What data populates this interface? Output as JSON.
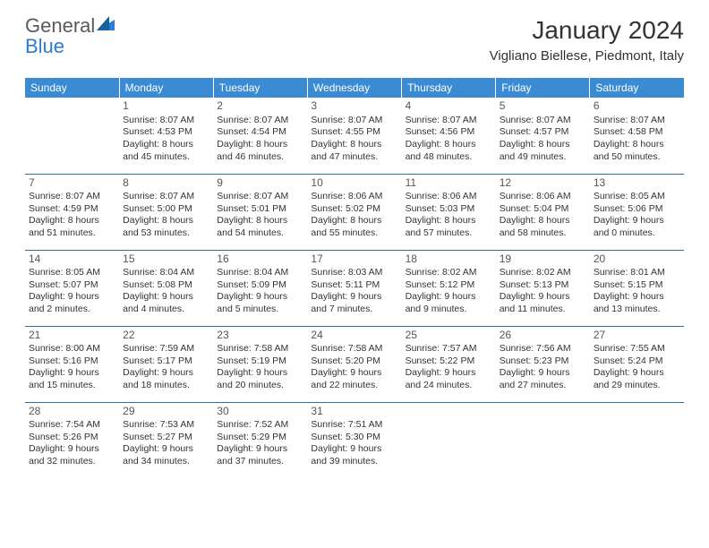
{
  "brand": {
    "part1": "General",
    "part2": "Blue"
  },
  "title": {
    "month": "January 2024",
    "location": "Vigliano Biellese, Piedmont, Italy"
  },
  "colors": {
    "header_bg": "#3b8bd4",
    "header_text": "#ffffff",
    "row_border": "#2d6fa8",
    "text": "#333333",
    "logo_gray": "#5a5a5a",
    "logo_blue": "#2b7cd3"
  },
  "weekdays": [
    "Sunday",
    "Monday",
    "Tuesday",
    "Wednesday",
    "Thursday",
    "Friday",
    "Saturday"
  ],
  "weeks": [
    [
      null,
      {
        "n": "1",
        "sr": "Sunrise: 8:07 AM",
        "ss": "Sunset: 4:53 PM",
        "d1": "Daylight: 8 hours",
        "d2": "and 45 minutes."
      },
      {
        "n": "2",
        "sr": "Sunrise: 8:07 AM",
        "ss": "Sunset: 4:54 PM",
        "d1": "Daylight: 8 hours",
        "d2": "and 46 minutes."
      },
      {
        "n": "3",
        "sr": "Sunrise: 8:07 AM",
        "ss": "Sunset: 4:55 PM",
        "d1": "Daylight: 8 hours",
        "d2": "and 47 minutes."
      },
      {
        "n": "4",
        "sr": "Sunrise: 8:07 AM",
        "ss": "Sunset: 4:56 PM",
        "d1": "Daylight: 8 hours",
        "d2": "and 48 minutes."
      },
      {
        "n": "5",
        "sr": "Sunrise: 8:07 AM",
        "ss": "Sunset: 4:57 PM",
        "d1": "Daylight: 8 hours",
        "d2": "and 49 minutes."
      },
      {
        "n": "6",
        "sr": "Sunrise: 8:07 AM",
        "ss": "Sunset: 4:58 PM",
        "d1": "Daylight: 8 hours",
        "d2": "and 50 minutes."
      }
    ],
    [
      {
        "n": "7",
        "sr": "Sunrise: 8:07 AM",
        "ss": "Sunset: 4:59 PM",
        "d1": "Daylight: 8 hours",
        "d2": "and 51 minutes."
      },
      {
        "n": "8",
        "sr": "Sunrise: 8:07 AM",
        "ss": "Sunset: 5:00 PM",
        "d1": "Daylight: 8 hours",
        "d2": "and 53 minutes."
      },
      {
        "n": "9",
        "sr": "Sunrise: 8:07 AM",
        "ss": "Sunset: 5:01 PM",
        "d1": "Daylight: 8 hours",
        "d2": "and 54 minutes."
      },
      {
        "n": "10",
        "sr": "Sunrise: 8:06 AM",
        "ss": "Sunset: 5:02 PM",
        "d1": "Daylight: 8 hours",
        "d2": "and 55 minutes."
      },
      {
        "n": "11",
        "sr": "Sunrise: 8:06 AM",
        "ss": "Sunset: 5:03 PM",
        "d1": "Daylight: 8 hours",
        "d2": "and 57 minutes."
      },
      {
        "n": "12",
        "sr": "Sunrise: 8:06 AM",
        "ss": "Sunset: 5:04 PM",
        "d1": "Daylight: 8 hours",
        "d2": "and 58 minutes."
      },
      {
        "n": "13",
        "sr": "Sunrise: 8:05 AM",
        "ss": "Sunset: 5:06 PM",
        "d1": "Daylight: 9 hours",
        "d2": "and 0 minutes."
      }
    ],
    [
      {
        "n": "14",
        "sr": "Sunrise: 8:05 AM",
        "ss": "Sunset: 5:07 PM",
        "d1": "Daylight: 9 hours",
        "d2": "and 2 minutes."
      },
      {
        "n": "15",
        "sr": "Sunrise: 8:04 AM",
        "ss": "Sunset: 5:08 PM",
        "d1": "Daylight: 9 hours",
        "d2": "and 4 minutes."
      },
      {
        "n": "16",
        "sr": "Sunrise: 8:04 AM",
        "ss": "Sunset: 5:09 PM",
        "d1": "Daylight: 9 hours",
        "d2": "and 5 minutes."
      },
      {
        "n": "17",
        "sr": "Sunrise: 8:03 AM",
        "ss": "Sunset: 5:11 PM",
        "d1": "Daylight: 9 hours",
        "d2": "and 7 minutes."
      },
      {
        "n": "18",
        "sr": "Sunrise: 8:02 AM",
        "ss": "Sunset: 5:12 PM",
        "d1": "Daylight: 9 hours",
        "d2": "and 9 minutes."
      },
      {
        "n": "19",
        "sr": "Sunrise: 8:02 AM",
        "ss": "Sunset: 5:13 PM",
        "d1": "Daylight: 9 hours",
        "d2": "and 11 minutes."
      },
      {
        "n": "20",
        "sr": "Sunrise: 8:01 AM",
        "ss": "Sunset: 5:15 PM",
        "d1": "Daylight: 9 hours",
        "d2": "and 13 minutes."
      }
    ],
    [
      {
        "n": "21",
        "sr": "Sunrise: 8:00 AM",
        "ss": "Sunset: 5:16 PM",
        "d1": "Daylight: 9 hours",
        "d2": "and 15 minutes."
      },
      {
        "n": "22",
        "sr": "Sunrise: 7:59 AM",
        "ss": "Sunset: 5:17 PM",
        "d1": "Daylight: 9 hours",
        "d2": "and 18 minutes."
      },
      {
        "n": "23",
        "sr": "Sunrise: 7:58 AM",
        "ss": "Sunset: 5:19 PM",
        "d1": "Daylight: 9 hours",
        "d2": "and 20 minutes."
      },
      {
        "n": "24",
        "sr": "Sunrise: 7:58 AM",
        "ss": "Sunset: 5:20 PM",
        "d1": "Daylight: 9 hours",
        "d2": "and 22 minutes."
      },
      {
        "n": "25",
        "sr": "Sunrise: 7:57 AM",
        "ss": "Sunset: 5:22 PM",
        "d1": "Daylight: 9 hours",
        "d2": "and 24 minutes."
      },
      {
        "n": "26",
        "sr": "Sunrise: 7:56 AM",
        "ss": "Sunset: 5:23 PM",
        "d1": "Daylight: 9 hours",
        "d2": "and 27 minutes."
      },
      {
        "n": "27",
        "sr": "Sunrise: 7:55 AM",
        "ss": "Sunset: 5:24 PM",
        "d1": "Daylight: 9 hours",
        "d2": "and 29 minutes."
      }
    ],
    [
      {
        "n": "28",
        "sr": "Sunrise: 7:54 AM",
        "ss": "Sunset: 5:26 PM",
        "d1": "Daylight: 9 hours",
        "d2": "and 32 minutes."
      },
      {
        "n": "29",
        "sr": "Sunrise: 7:53 AM",
        "ss": "Sunset: 5:27 PM",
        "d1": "Daylight: 9 hours",
        "d2": "and 34 minutes."
      },
      {
        "n": "30",
        "sr": "Sunrise: 7:52 AM",
        "ss": "Sunset: 5:29 PM",
        "d1": "Daylight: 9 hours",
        "d2": "and 37 minutes."
      },
      {
        "n": "31",
        "sr": "Sunrise: 7:51 AM",
        "ss": "Sunset: 5:30 PM",
        "d1": "Daylight: 9 hours",
        "d2": "and 39 minutes."
      },
      null,
      null,
      null
    ]
  ]
}
